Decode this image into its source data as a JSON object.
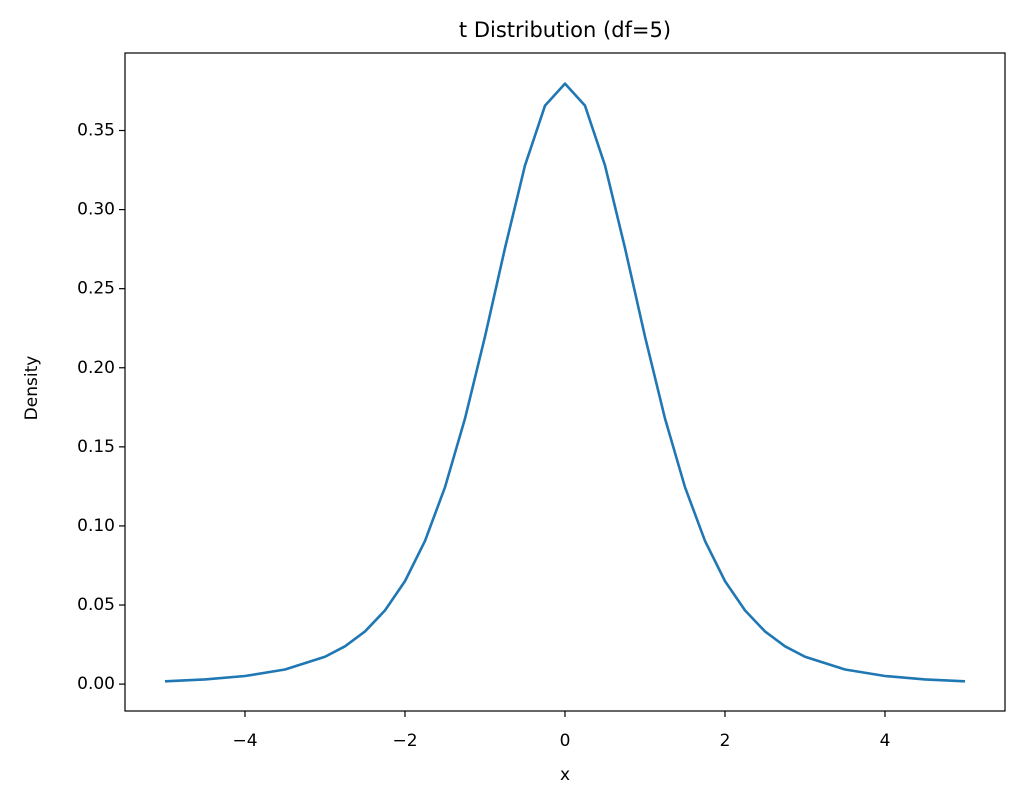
{
  "chart_data": {
    "type": "line",
    "title": "t Distribution (df=5)",
    "x_label": "x",
    "y_label": "Density",
    "x": [
      -5,
      -4.5,
      -4,
      -3.5,
      -3,
      -2.75,
      -2.5,
      -2.25,
      -2,
      -1.75,
      -1.5,
      -1.25,
      -1,
      -0.75,
      -0.5,
      -0.25,
      0,
      0.25,
      0.5,
      0.75,
      1,
      1.25,
      1.5,
      1.75,
      2,
      2.25,
      2.5,
      2.75,
      3,
      3.5,
      4,
      4.5,
      5
    ],
    "series": [
      {
        "color": "#1f77b4",
        "values": [
          0.00176,
          0.00295,
          0.00512,
          0.00924,
          0.0173,
          0.0239,
          0.0333,
          0.0466,
          0.0651,
          0.0905,
          0.1245,
          0.1679,
          0.2197,
          0.2757,
          0.3279,
          0.3657,
          0.3796,
          0.3657,
          0.3279,
          0.2757,
          0.2197,
          0.1679,
          0.1245,
          0.0905,
          0.0651,
          0.0466,
          0.0333,
          0.0239,
          0.0173,
          0.00924,
          0.00512,
          0.00295,
          0.00176
        ]
      }
    ],
    "xlim": [
      -5.5,
      5.5
    ],
    "xticks": [
      {
        "value": -4,
        "label": "−4"
      },
      {
        "value": -2,
        "label": "−2"
      },
      0,
      2,
      4
    ],
    "ylim": [
      -0.017,
      0.399
    ],
    "yticks": [
      {
        "value": 0,
        "label": "0.00"
      },
      0.05,
      {
        "value": 0.1,
        "label": "0.10"
      },
      0.15,
      {
        "value": 0.2,
        "label": "0.20"
      },
      0.25,
      {
        "value": 0.3,
        "label": "0.30"
      },
      0.35
    ],
    "grid": false
  }
}
